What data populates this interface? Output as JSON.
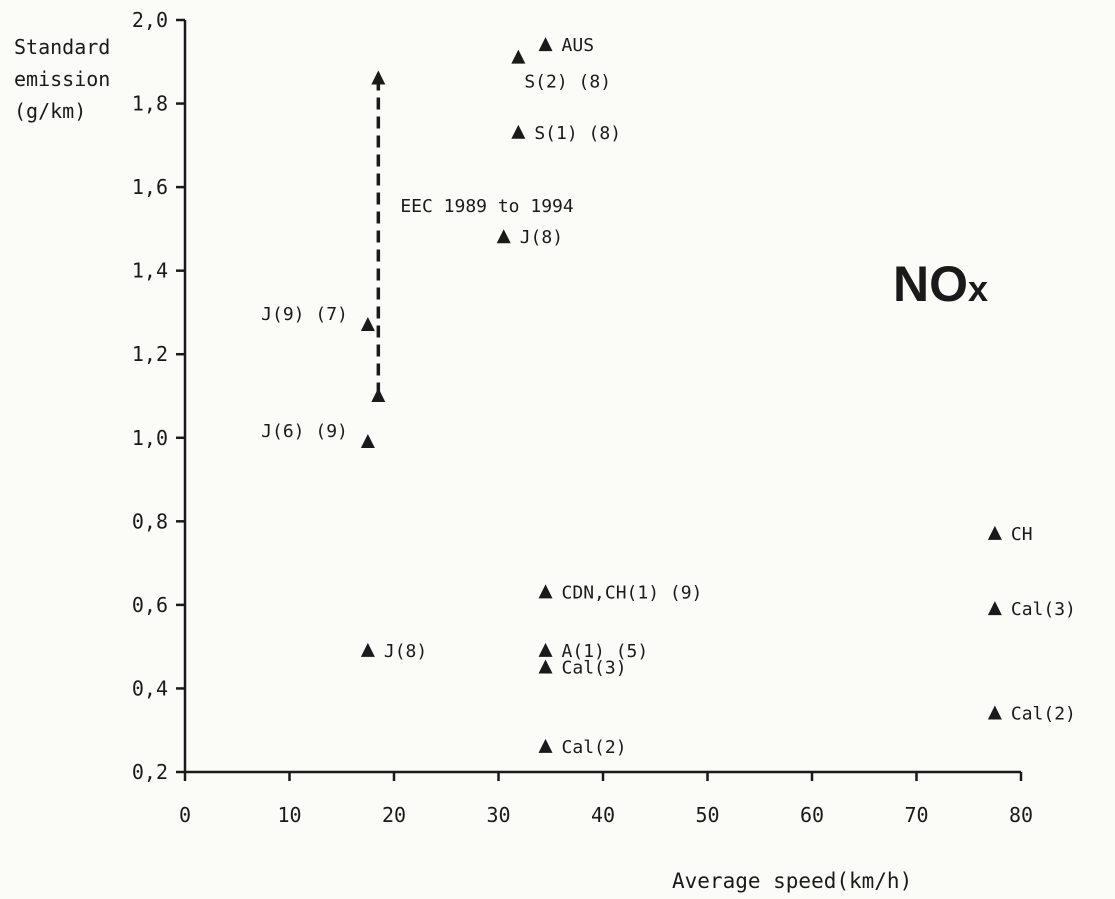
{
  "chart_data": {
    "type": "scatter",
    "title": "NOx",
    "ylabel_lines": [
      "Standard",
      "emission",
      "(g/km)"
    ],
    "xlabel": "Average speed(km/h)",
    "xlim": [
      0,
      80
    ],
    "ylim": [
      0.2,
      2.0
    ],
    "xticks": [
      0,
      10,
      20,
      30,
      40,
      50,
      60,
      70,
      80
    ],
    "yticks": [
      0.2,
      0.4,
      0.6,
      0.8,
      1.0,
      1.2,
      1.4,
      1.6,
      1.8,
      2.0
    ],
    "ytick_labels": [
      "0,2",
      "0,4",
      "0,6",
      "0,8",
      "1,0",
      "1,2",
      "1,4",
      "1,6",
      "1,8",
      "2,0"
    ],
    "grid": false,
    "points": [
      {
        "x": 34.5,
        "y": 1.94,
        "label": "AUS",
        "label_pos": "right"
      },
      {
        "x": 31.9,
        "y": 1.91,
        "label": "S(2) (8)",
        "label_pos": "below-right"
      },
      {
        "x": 31.9,
        "y": 1.73,
        "label": "S(1) (8)",
        "label_pos": "right"
      },
      {
        "x": 30.5,
        "y": 1.48,
        "label": "J(8)",
        "label_pos": "right"
      },
      {
        "x": 17.5,
        "y": 1.27,
        "label": "J(9) (7)",
        "label_pos": "left"
      },
      {
        "x": 17.5,
        "y": 0.99,
        "label": "J(6) (9)",
        "label_pos": "left"
      },
      {
        "x": 17.5,
        "y": 0.49,
        "label": "J(8)",
        "label_pos": "right"
      },
      {
        "x": 34.5,
        "y": 0.63,
        "label": "CDN,CH(1) (9)",
        "label_pos": "right"
      },
      {
        "x": 34.5,
        "y": 0.49,
        "label": "A(1) (5)",
        "label_pos": "right"
      },
      {
        "x": 34.5,
        "y": 0.45,
        "label": "Cal(3)",
        "label_pos": "right"
      },
      {
        "x": 34.5,
        "y": 0.26,
        "label": "Cal(2)",
        "label_pos": "right"
      },
      {
        "x": 77.5,
        "y": 0.77,
        "label": "CH",
        "label_pos": "right"
      },
      {
        "x": 77.5,
        "y": 0.59,
        "label": "Cal(3)",
        "label_pos": "right"
      },
      {
        "x": 77.5,
        "y": 0.34,
        "label": "Cal(2)",
        "label_pos": "right"
      }
    ],
    "range_bar": {
      "x": 18.5,
      "y_low": 1.1,
      "y_high": 1.86,
      "label": "EEC 1989 to 1994"
    }
  }
}
